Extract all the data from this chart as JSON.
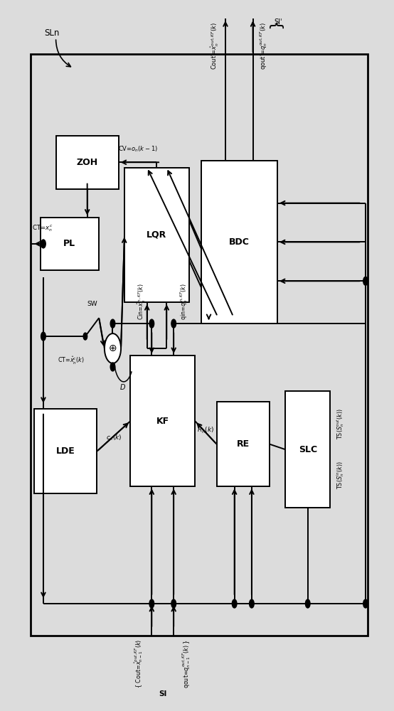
{
  "bg_color": "#dcdcdc",
  "box_color": "#ffffff",
  "line_color": "#000000",
  "fig_width": 5.54,
  "fig_height": 10.0,
  "blocks": {
    "ZOH": [
      0.14,
      0.735,
      0.16,
      0.075
    ],
    "PL": [
      0.1,
      0.62,
      0.15,
      0.075
    ],
    "LQR": [
      0.315,
      0.575,
      0.165,
      0.19
    ],
    "BDC": [
      0.51,
      0.545,
      0.195,
      0.23
    ],
    "KF": [
      0.33,
      0.315,
      0.165,
      0.185
    ],
    "LDE": [
      0.085,
      0.305,
      0.16,
      0.12
    ],
    "RE": [
      0.55,
      0.315,
      0.135,
      0.12
    ],
    "SLC": [
      0.725,
      0.285,
      0.115,
      0.165
    ]
  },
  "border": [
    0.075,
    0.105,
    0.86,
    0.82
  ]
}
